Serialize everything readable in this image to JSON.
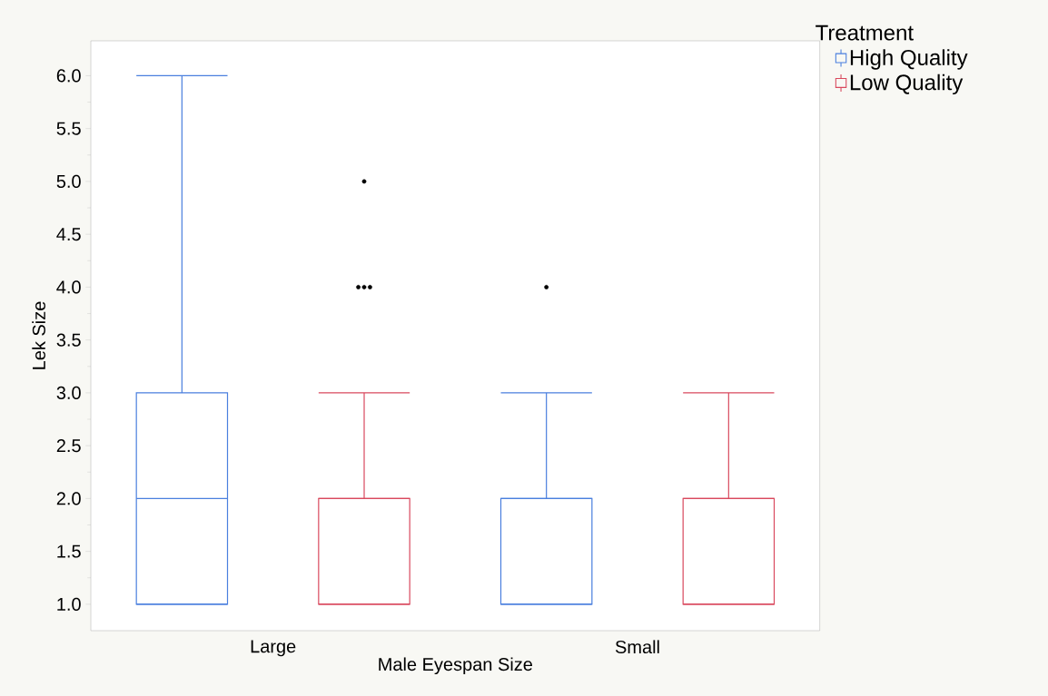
{
  "chart_data": {
    "type": "box",
    "xlabel": "Male Eyespan Size",
    "ylabel": "Lek Size",
    "legend_title": "Treatment",
    "categories": [
      "Large",
      "Small"
    ],
    "series": [
      {
        "name": "High Quality",
        "color": "#4a7fde",
        "boxes": [
          {
            "low": 1,
            "q1": 1,
            "median": 2,
            "q3": 3,
            "high": 6
          },
          {
            "low": 1,
            "q1": 1,
            "median": 2,
            "q3": 2,
            "high": 3,
            "outliers": [
              4
            ]
          }
        ]
      },
      {
        "name": "Low Quality",
        "color": "#d9495e",
        "boxes": [
          {
            "low": 1,
            "q1": 1,
            "median": 2,
            "q3": 2,
            "high": 3,
            "outliers": [
              4,
              4,
              4,
              5
            ]
          },
          {
            "low": 1,
            "q1": 1,
            "median": 2,
            "q3": 2,
            "high": 3
          }
        ]
      }
    ],
    "ylim": [
      0.75,
      6.33
    ],
    "yticks": [
      {
        "value": 1,
        "label": "1.0"
      },
      {
        "value": 1.5,
        "label": "1.5"
      },
      {
        "value": 2,
        "label": "2.0"
      },
      {
        "value": 2.5,
        "label": "2.5"
      },
      {
        "value": 3,
        "label": "3.0"
      },
      {
        "value": 3.5,
        "label": "3.5"
      },
      {
        "value": 4,
        "label": "4.0"
      },
      {
        "value": 4.5,
        "label": "4.5"
      },
      {
        "value": 5,
        "label": "5.0"
      },
      {
        "value": 5.5,
        "label": "5.5"
      },
      {
        "value": 6,
        "label": "6.0"
      }
    ],
    "legend": "top right",
    "grid": false
  }
}
